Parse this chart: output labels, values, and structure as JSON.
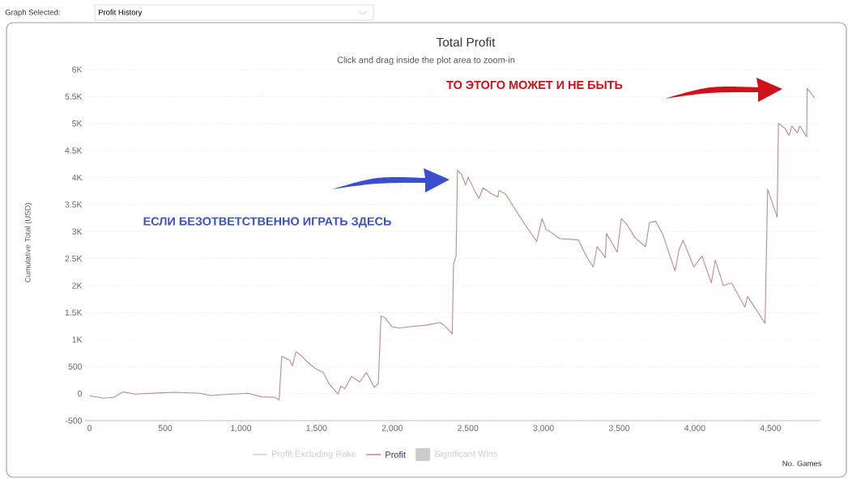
{
  "chart_data": {
    "type": "line",
    "title": "Total Profit",
    "subtitle": "Click and drag inside the plot area to zoom-in",
    "xlabel": "No. Games",
    "ylabel": "Cumulative Total (USD)",
    "annotations": [
      "ЕСЛИ БЕЗОТВЕТСТВЕННО ИГРАТЬ ЗДЕСЬ",
      "ТО ЭТОГО МОЖЕТ И НЕ БЫТЬ",
      "Graph Selected:",
      "Profit History"
    ],
    "xlim": [
      -30,
      4830
    ],
    "ylim": [
      -500,
      6000
    ],
    "xticks": [
      0,
      500,
      {
        "value": 1000,
        "label": "1,000"
      },
      {
        "value": 1500,
        "label": "1,500"
      },
      {
        "value": 2000,
        "label": "2,000"
      },
      {
        "value": 2500,
        "label": "2,500"
      },
      {
        "value": 3000,
        "label": "3,000"
      },
      {
        "value": 3500,
        "label": "3,500"
      },
      {
        "value": 4000,
        "label": "4,000"
      },
      {
        "value": 4500,
        "label": "4,500"
      }
    ],
    "yticks": [
      -500,
      0,
      500,
      {
        "value": 1000,
        "label": "1K"
      },
      {
        "value": 1500,
        "label": "1.5K"
      },
      {
        "value": 2000,
        "label": "2K"
      },
      {
        "value": 2500,
        "label": "2.5K"
      },
      {
        "value": 3000,
        "label": "3K"
      },
      {
        "value": 3500,
        "label": "3.5K"
      },
      {
        "value": 4000,
        "label": "4K"
      },
      {
        "value": 4500,
        "label": "4.5K"
      },
      {
        "value": 5000,
        "label": "5K"
      },
      {
        "value": 5500,
        "label": "5.5K"
      },
      {
        "value": 6000,
        "label": "6K"
      }
    ],
    "grid": "y",
    "legend": "bottom",
    "marker": "none",
    "line_style": "solid",
    "series": [
      {
        "name": "Profit Excluding Rake",
        "color": "#cccccc"
      },
      {
        "name": "Profit",
        "color": "#c08a8a",
        "x": [
          0,
          89,
          160,
          222,
          302,
          480,
          568,
          728,
          799,
          870,
          1048,
          1136,
          1225,
          1252,
          1270,
          1323,
          1340,
          1364,
          1394,
          1438,
          1491,
          1545,
          1580,
          1642,
          1660,
          1687,
          1731,
          1784,
          1829,
          1882,
          1908,
          1926,
          1953,
          1997,
          2042,
          2130,
          2219,
          2317,
          2343,
          2397,
          2405,
          2422,
          2431,
          2458,
          2485,
          2502,
          2547,
          2573,
          2600,
          2662,
          2698,
          2706,
          2751,
          2840,
          2893,
          2955,
          2990,
          3017,
          3061,
          3106,
          3230,
          3283,
          3328,
          3354,
          3408,
          3416,
          3487,
          3514,
          3549,
          3603,
          3674,
          3700,
          3741,
          3789,
          3869,
          3896,
          3922,
          3993,
          4047,
          4109,
          4135,
          4188,
          4242,
          4331,
          4348,
          4464,
          4481,
          4544,
          4552,
          4597,
          4623,
          4641,
          4677,
          4694,
          4739,
          4742,
          4792
        ],
        "values": [
          -40,
          -85,
          -70,
          30,
          -10,
          15,
          25,
          5,
          -35,
          -20,
          5,
          -60,
          -70,
          -120,
          690,
          615,
          515,
          775,
          715,
          590,
          465,
          390,
          190,
          -10,
          140,
          90,
          315,
          215,
          390,
          115,
          190,
          1440,
          1400,
          1240,
          1215,
          1240,
          1265,
          1315,
          1265,
          1105,
          2395,
          2545,
          4135,
          4060,
          3860,
          4010,
          3740,
          3615,
          3810,
          3690,
          3640,
          3760,
          3690,
          3290,
          3065,
          2820,
          3240,
          3040,
          2965,
          2870,
          2845,
          2545,
          2345,
          2720,
          2520,
          2965,
          2620,
          3240,
          3140,
          2890,
          2720,
          3165,
          3190,
          2940,
          2270,
          2670,
          2840,
          2345,
          2545,
          2050,
          2470,
          2000,
          2050,
          1600,
          1800,
          1300,
          3785,
          3265,
          5005,
          4905,
          4780,
          4955,
          4830,
          4955,
          4755,
          5650,
          5475
        ]
      },
      {
        "name": "Significant Wins",
        "type": "area",
        "color": "#cccccc"
      }
    ]
  }
}
